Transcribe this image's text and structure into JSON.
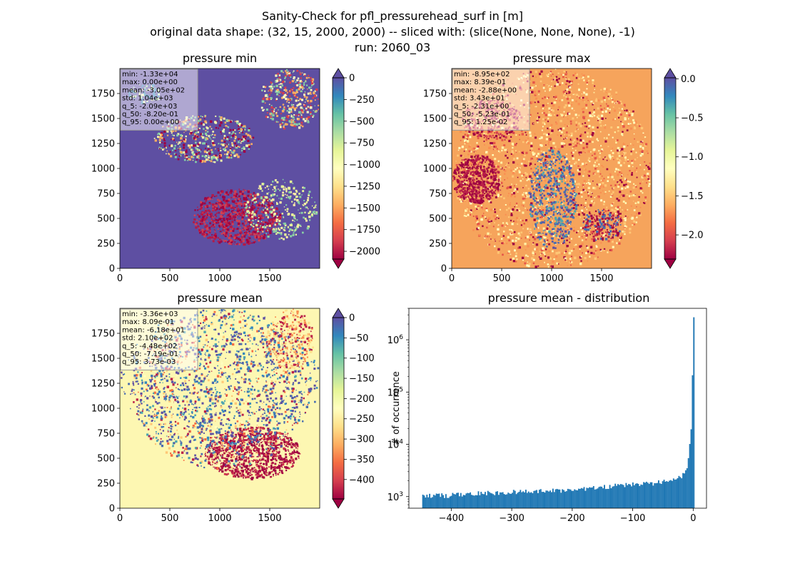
{
  "figure": {
    "title_line1": "Sanity-Check for pfl_pressurehead_surf in [m]",
    "title_line2": "original data shape: (32, 15, 2000, 2000) -- sliced with: (slice(None, None, None), -1)",
    "title_line3": "run: 2060_03"
  },
  "chart_data": [
    {
      "type": "heatmap",
      "title": "pressure min",
      "xlabel": "",
      "ylabel": "",
      "x_ticks": [
        "0",
        "500",
        "1000",
        "1500"
      ],
      "y_ticks": [
        "0",
        "250",
        "500",
        "750",
        "1000",
        "1250",
        "1500",
        "1750"
      ],
      "xlim": [
        0,
        2000
      ],
      "ylim": [
        0,
        2000
      ],
      "colormap": "Spectral",
      "background_color": "#5e4fa2",
      "clim": [
        -2090,
        0
      ],
      "colorbar_ticks": [
        "0",
        "−250",
        "−500",
        "−750",
        "−1000",
        "−1250",
        "−1500",
        "−1750",
        "−2000"
      ],
      "colorbar_tick_values": [
        0,
        -250,
        -500,
        -750,
        -1000,
        -1250,
        -1500,
        -1750,
        -2000
      ],
      "colorbar_extend": "both",
      "stats": [
        "min: -1.33e+04",
        "max: 0.00e+00",
        "mean: -3.05e+02",
        "std: 1.04e+03",
        "q_5: -2.09e+03",
        "q_50: -8.20e-01",
        "q_95: 0.00e+00"
      ]
    },
    {
      "type": "heatmap",
      "title": "pressure max",
      "xlabel": "",
      "ylabel": "",
      "x_ticks": [
        "0",
        "500",
        "1000",
        "1500"
      ],
      "y_ticks": [
        "0",
        "250",
        "500",
        "750",
        "1000",
        "1250",
        "1500",
        "1750"
      ],
      "xlim": [
        0,
        2000
      ],
      "ylim": [
        0,
        2000
      ],
      "colormap": "Spectral",
      "background_color": "#f6a45c",
      "clim": [
        -2.31,
        0.0125
      ],
      "colorbar_ticks": [
        "0.0",
        "−0.5",
        "−1.0",
        "−1.5",
        "−2.0"
      ],
      "colorbar_tick_values": [
        0,
        -0.5,
        -1.0,
        -1.5,
        -2.0
      ],
      "colorbar_extend": "both",
      "stats": [
        "min: -8.95e+02",
        "max: 8.39e-01",
        "mean: -2.88e+00",
        "std: 3.43e+01",
        "q_5: -2.31e+00",
        "q_50: -5.23e-01",
        "q_95: 1.25e-02"
      ]
    },
    {
      "type": "heatmap",
      "title": "pressure mean",
      "xlabel": "",
      "ylabel": "",
      "x_ticks": [
        "0",
        "500",
        "1000",
        "1500"
      ],
      "y_ticks": [
        "0",
        "250",
        "500",
        "750",
        "1000",
        "1250",
        "1500",
        "1750"
      ],
      "xlim": [
        0,
        2000
      ],
      "ylim": [
        0,
        2000
      ],
      "colormap": "Spectral",
      "background_color": "#fdf7b2",
      "clim": [
        -448,
        0.00373
      ],
      "colorbar_ticks": [
        "0",
        "−50",
        "−100",
        "−150",
        "−200",
        "−250",
        "−300",
        "−350",
        "−400"
      ],
      "colorbar_tick_values": [
        0,
        -50,
        -100,
        -150,
        -200,
        -250,
        -300,
        -350,
        -400
      ],
      "colorbar_extend": "both",
      "stats": [
        "min: -3.36e+03",
        "max: 8.09e-01",
        "mean: -6.18e+01",
        "std: 2.10e+02",
        "q_5: -4.48e+02",
        "q_50: -7.19e-01",
        "q_95: 3.73e-03"
      ]
    },
    {
      "type": "bar",
      "title": "pressure mean - distribution",
      "xlabel": "",
      "ylabel": "# of occurrence",
      "yscale": "log",
      "ylim": [
        600,
        4000000
      ],
      "xlim": [
        -470,
        22
      ],
      "x_ticks": [
        "−400",
        "−300",
        "−200",
        "−100",
        "0"
      ],
      "x_tick_values": [
        -400,
        -300,
        -200,
        -100,
        0
      ],
      "y_ticks": [
        "10^3",
        "10^4",
        "10^5",
        "10^6"
      ],
      "y_tick_values": [
        1000,
        10000,
        100000,
        1000000
      ],
      "bar_color": "#1f77b4",
      "bin_width": 2.24,
      "x": [
        -448,
        -400,
        -350,
        -300,
        -250,
        -200,
        -175,
        -150,
        -125,
        -100,
        -80,
        -60,
        -50,
        -40,
        -30,
        -20,
        -15,
        -10,
        -8,
        -6,
        -4,
        -2,
        -1,
        0
      ],
      "values": [
        1000,
        1050,
        1150,
        1200,
        1250,
        1350,
        1400,
        1500,
        1600,
        1700,
        1750,
        1800,
        1900,
        2000,
        2200,
        2400,
        2800,
        3500,
        5000,
        8000,
        15000,
        33000,
        270000,
        2700000
      ]
    }
  ]
}
